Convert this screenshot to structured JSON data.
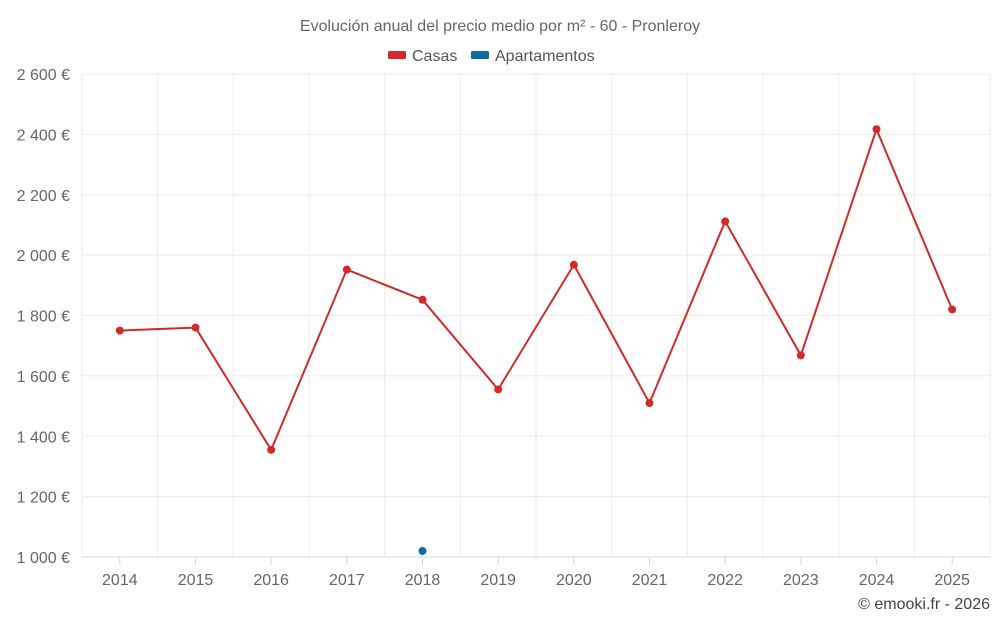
{
  "chart_data": {
    "type": "line",
    "title": "Evolución anual del precio medio por m² - 60 - Pronleroy",
    "categories": [
      "2014",
      "2015",
      "2016",
      "2017",
      "2018",
      "2019",
      "2020",
      "2021",
      "2022",
      "2023",
      "2024",
      "2025"
    ],
    "series": [
      {
        "name": "Casas",
        "color": "#d12a2a",
        "values": [
          1750,
          1760,
          1355,
          1952,
          1852,
          1555,
          1968,
          1510,
          2112,
          1668,
          2417,
          1820
        ]
      },
      {
        "name": "Apartamentos",
        "color": "#0f6aa3",
        "values": [
          null,
          null,
          null,
          null,
          1020,
          null,
          null,
          null,
          null,
          null,
          null,
          null
        ]
      }
    ],
    "yticks": [
      1000,
      1200,
      1400,
      1600,
      1800,
      2000,
      2200,
      2400,
      2600
    ],
    "ytick_labels": [
      "1 000 €",
      "1 200 €",
      "1 400 €",
      "1 600 €",
      "1 800 €",
      "2 000 €",
      "2 200 €",
      "2 400 €",
      "2 600 €"
    ],
    "ylim": [
      1000,
      2600
    ],
    "xlabel": "",
    "ylabel": "",
    "grid": true,
    "legend_position": "top-center"
  },
  "credit": "© emooki.fr - 2026"
}
